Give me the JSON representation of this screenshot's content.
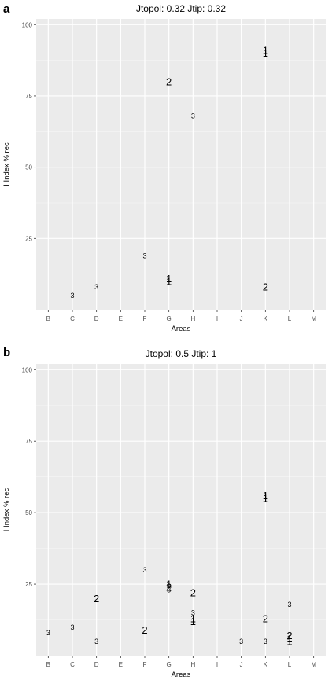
{
  "chart_data": [
    {
      "type": "scatter",
      "panel_label": "a",
      "title": "Jtopol: 0.32 Jtip: 0.32",
      "xlabel": "Areas",
      "ylabel": "I Index % rec",
      "categories": [
        "B",
        "C",
        "D",
        "E",
        "F",
        "G",
        "H",
        "I",
        "J",
        "K",
        "L",
        "M"
      ],
      "ylim": [
        0,
        102
      ],
      "yticks": [
        25,
        50,
        75,
        100
      ],
      "grid": true,
      "marker": "text-label",
      "points": [
        {
          "x": "C",
          "y": 5,
          "label": "3"
        },
        {
          "x": "D",
          "y": 8,
          "label": "3"
        },
        {
          "x": "F",
          "y": 19,
          "label": "3"
        },
        {
          "x": "G",
          "y": 80,
          "label": "2"
        },
        {
          "x": "G",
          "y": 11,
          "label": "1"
        },
        {
          "x": "G",
          "y": 10,
          "label": "1"
        },
        {
          "x": "H",
          "y": 68,
          "label": "3"
        },
        {
          "x": "K",
          "y": 91,
          "label": "1"
        },
        {
          "x": "K",
          "y": 90,
          "label": "1"
        },
        {
          "x": "K",
          "y": 8,
          "label": "2"
        }
      ]
    },
    {
      "type": "scatter",
      "panel_label": "b",
      "title": "Jtopol: 0.5 Jtip: 1",
      "xlabel": "Areas",
      "ylabel": "I Index % rec",
      "categories": [
        "B",
        "C",
        "D",
        "E",
        "F",
        "G",
        "H",
        "I",
        "J",
        "K",
        "L",
        "M"
      ],
      "ylim": [
        0,
        102
      ],
      "yticks": [
        25,
        50,
        75,
        100
      ],
      "grid": true,
      "marker": "text-label",
      "points": [
        {
          "x": "B",
          "y": 8,
          "label": "3"
        },
        {
          "x": "C",
          "y": 10,
          "label": "3"
        },
        {
          "x": "D",
          "y": 20,
          "label": "2"
        },
        {
          "x": "D",
          "y": 5,
          "label": "3"
        },
        {
          "x": "F",
          "y": 30,
          "label": "3"
        },
        {
          "x": "F",
          "y": 9,
          "label": "2"
        },
        {
          "x": "G",
          "y": 25,
          "label": "1"
        },
        {
          "x": "G",
          "y": 24,
          "label": "2"
        },
        {
          "x": "G",
          "y": 23,
          "label": "3"
        },
        {
          "x": "H",
          "y": 22,
          "label": "2"
        },
        {
          "x": "H",
          "y": 15,
          "label": "3"
        },
        {
          "x": "H",
          "y": 13,
          "label": "1"
        },
        {
          "x": "H",
          "y": 12,
          "label": "1"
        },
        {
          "x": "J",
          "y": 5,
          "label": "3"
        },
        {
          "x": "K",
          "y": 56,
          "label": "1"
        },
        {
          "x": "K",
          "y": 55,
          "label": "1"
        },
        {
          "x": "K",
          "y": 13,
          "label": "2"
        },
        {
          "x": "K",
          "y": 5,
          "label": "3"
        },
        {
          "x": "L",
          "y": 18,
          "label": "3"
        },
        {
          "x": "L",
          "y": 7,
          "label": "2"
        },
        {
          "x": "L",
          "y": 6,
          "label": "1"
        },
        {
          "x": "L",
          "y": 5,
          "label": "1"
        }
      ]
    }
  ]
}
